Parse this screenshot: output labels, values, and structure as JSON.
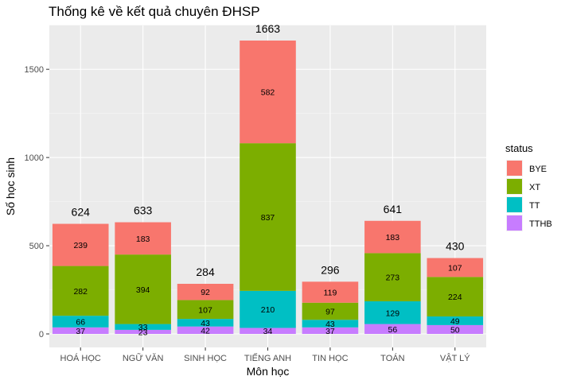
{
  "chart_data": {
    "type": "bar",
    "stacked": true,
    "title": "Thống kê về kết quả chuyên ĐHSP",
    "xlabel": "Môn học",
    "ylabel": "Số học sinh",
    "categories": [
      "HOÁ HỌC",
      "NGỮ VĂN",
      "SINH HỌC",
      "TIẾNG ANH",
      "TIN HỌC",
      "TOÁN",
      "VẬT LÝ"
    ],
    "totals": [
      624,
      633,
      284,
      1663,
      296,
      641,
      430
    ],
    "series": [
      {
        "name": "TTHB",
        "color": "#C77CFF",
        "values": [
          37,
          23,
          42,
          34,
          37,
          56,
          50
        ]
      },
      {
        "name": "TT",
        "color": "#00BFC4",
        "values": [
          66,
          33,
          43,
          210,
          43,
          129,
          49
        ]
      },
      {
        "name": "XT",
        "color": "#7CAE00",
        "values": [
          282,
          394,
          107,
          837,
          97,
          273,
          224
        ]
      },
      {
        "name": "BYE",
        "color": "#F8766D",
        "values": [
          239,
          183,
          92,
          582,
          119,
          183,
          107
        ]
      }
    ],
    "yticks": [
      0,
      500,
      1000,
      1500
    ],
    "ylim": [
      0,
      1663
    ],
    "grid": true,
    "legend": {
      "title": "status",
      "position": "right",
      "order": [
        "BYE",
        "XT",
        "TT",
        "TTHB"
      ]
    }
  }
}
